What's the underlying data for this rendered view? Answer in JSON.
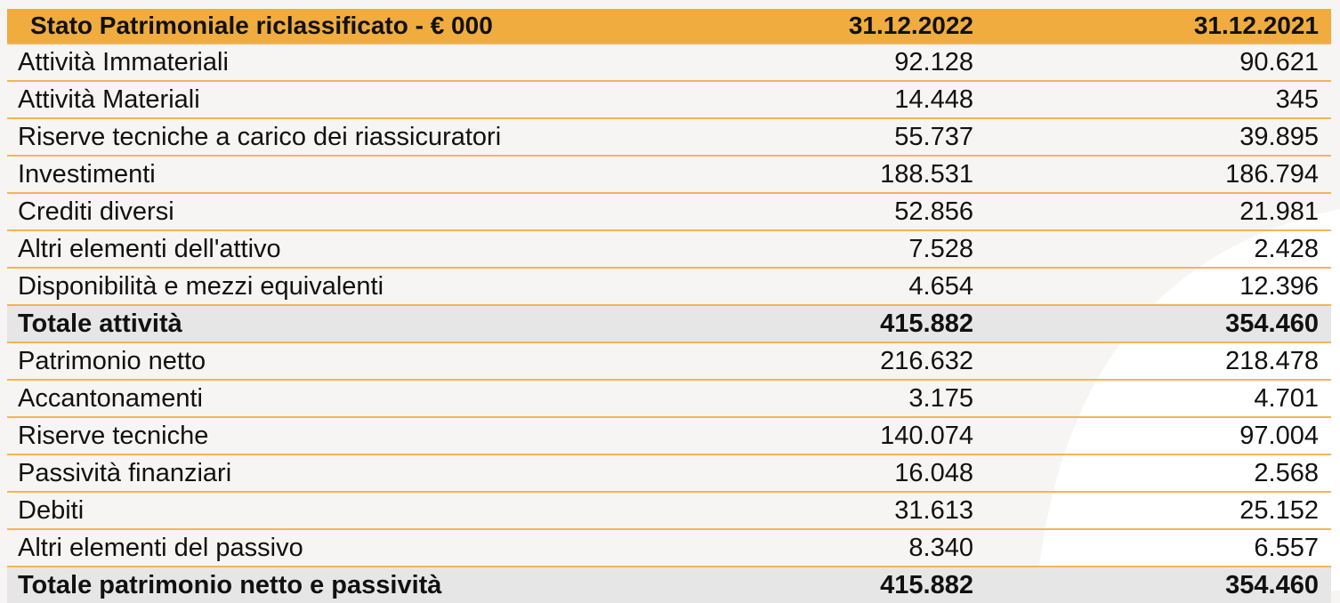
{
  "table": {
    "headers": [
      "Stato Patrimoniale riclassificato - € 000",
      "31.12.2022",
      "31.12.2021"
    ],
    "rows": [
      {
        "label": "Attività Immateriali",
        "v2022": "92.128",
        "v2021": "90.621",
        "total": false
      },
      {
        "label": "Attività Materiali",
        "v2022": "14.448",
        "v2021": "345",
        "total": false
      },
      {
        "label": "Riserve tecniche a carico dei riassicuratori",
        "v2022": "55.737",
        "v2021": "39.895",
        "total": false
      },
      {
        "label": "Investimenti",
        "v2022": "188.531",
        "v2021": "186.794",
        "total": false
      },
      {
        "label": "Crediti diversi",
        "v2022": "52.856",
        "v2021": "21.981",
        "total": false
      },
      {
        "label": "Altri elementi dell'attivo",
        "v2022": "7.528",
        "v2021": "2.428",
        "total": false
      },
      {
        "label": "Disponibilità e mezzi equivalenti",
        "v2022": "4.654",
        "v2021": "12.396",
        "total": false
      },
      {
        "label": "Totale attività",
        "v2022": "415.882",
        "v2021": "354.460",
        "total": true
      },
      {
        "label": "Patrimonio netto",
        "v2022": "216.632",
        "v2021": "218.478",
        "total": false
      },
      {
        "label": "Accantonamenti",
        "v2022": "3.175",
        "v2021": "4.701",
        "total": false
      },
      {
        "label": "Riserve tecniche",
        "v2022": "140.074",
        "v2021": "97.004",
        "total": false
      },
      {
        "label": "Passività finanziari",
        "v2022": "16.048",
        "v2021": "2.568",
        "total": false
      },
      {
        "label": "Debiti",
        "v2022": "31.613",
        "v2021": "25.152",
        "total": false
      },
      {
        "label": "Altri elementi del passivo",
        "v2022": "8.340",
        "v2021": "6.557",
        "total": false
      },
      {
        "label": "Totale patrimonio netto e passività",
        "v2022": "415.882",
        "v2021": "354.460",
        "total": true
      }
    ]
  },
  "colors": {
    "header": "#f0ac3f",
    "row_border": "#f3b45a",
    "total_bg": "#e6e6e6"
  }
}
